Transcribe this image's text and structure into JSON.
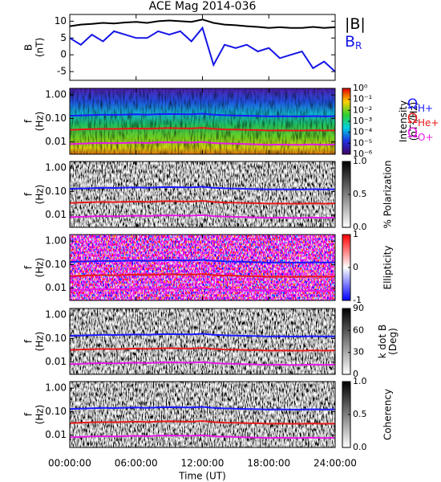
{
  "chart_data": [
    {
      "type": "line",
      "title": "ACE Mag 2014-036",
      "ylabel": [
        "B",
        "(nT)"
      ],
      "x": [
        0,
        1,
        2,
        3,
        4,
        5,
        6,
        7,
        8,
        9,
        10,
        11,
        12,
        13,
        14,
        15,
        16,
        17,
        18,
        19,
        20,
        21,
        22,
        23,
        24
      ],
      "xlim": [
        0,
        24
      ],
      "ylim": [
        -7.6,
        12
      ],
      "yticks": [
        -5,
        0,
        5,
        10
      ],
      "series": [
        {
          "name": "|B|",
          "color": "#000000",
          "values": [
            8.5,
            9,
            9.2,
            9.5,
            9.3,
            9.6,
            9.8,
            9.5,
            10,
            10.2,
            10,
            9.8,
            10.5,
            9.5,
            9,
            8.8,
            8.5,
            8.3,
            8,
            8.2,
            8,
            8,
            8.3,
            8,
            8.2
          ]
        },
        {
          "name": "B",
          "subscript": "R",
          "color": "#1515e6",
          "values": [
            5,
            3,
            6,
            4,
            7,
            6,
            5,
            5,
            7,
            6,
            7,
            4,
            8,
            -3,
            3,
            2,
            3,
            1,
            2,
            -1,
            0,
            1,
            -4,
            -2,
            -5
          ]
        }
      ]
    },
    {
      "type": "spectrogram",
      "ylabel": [
        "f",
        "(Hz)"
      ],
      "palette": "rainbow",
      "x": [
        0,
        1,
        2,
        3,
        4,
        5,
        6,
        7,
        8,
        9,
        10,
        11,
        12,
        13,
        14,
        15,
        16,
        17,
        18,
        19,
        20,
        21,
        22,
        23,
        24
      ],
      "xlim": [
        0,
        24
      ],
      "ylim": [
        0.003,
        1.9
      ],
      "log": true,
      "yticks": [
        {
          "value": 1,
          "label": "1.00"
        },
        {
          "value": 0.1,
          "label": "0.10"
        },
        {
          "value": 0.01,
          "label": "0.01"
        }
      ],
      "series": [
        {
          "name": "Ω",
          "subscript": "H+",
          "color": "#1a1aff",
          "values": [
            0.13,
            0.135,
            0.14,
            0.145,
            0.142,
            0.146,
            0.15,
            0.145,
            0.152,
            0.155,
            0.152,
            0.15,
            0.16,
            0.145,
            0.137,
            0.134,
            0.13,
            0.127,
            0.122,
            0.125,
            0.122,
            0.122,
            0.126,
            0.122,
            0.125
          ]
        },
        {
          "name": "Ω",
          "subscript": "He+",
          "color": "#e61a1a",
          "values": [
            0.0325,
            0.034,
            0.035,
            0.036,
            0.0355,
            0.0365,
            0.0375,
            0.036,
            0.038,
            0.039,
            0.038,
            0.0375,
            0.04,
            0.036,
            0.034,
            0.0335,
            0.0325,
            0.032,
            0.0305,
            0.031,
            0.0305,
            0.0305,
            0.0315,
            0.0305,
            0.031
          ]
        },
        {
          "name": "Ω",
          "subscript": "O+",
          "color": "#e619e6",
          "values": [
            0.0081,
            0.0084,
            0.0088,
            0.009,
            0.0089,
            0.0091,
            0.0094,
            0.009,
            0.0095,
            0.0097,
            0.0095,
            0.0094,
            0.01,
            0.009,
            0.0086,
            0.0084,
            0.0081,
            0.0079,
            0.0076,
            0.0078,
            0.0076,
            0.0076,
            0.0079,
            0.0076,
            0.0078
          ]
        }
      ],
      "colorbar": {
        "label": [
          "Intensity",
          "(nT²/Hz)"
        ],
        "lim": [
          1e-06,
          1
        ],
        "log": true,
        "ticks": [
          {
            "value": 1,
            "label": "10⁰"
          },
          {
            "value": 0.1,
            "label": "10⁻¹"
          },
          {
            "value": 0.01,
            "label": "10⁻²"
          },
          {
            "value": 0.001,
            "label": "10⁻³"
          },
          {
            "value": 0.0001,
            "label": "10⁻⁴"
          },
          {
            "value": 1e-05,
            "label": "10⁻⁵"
          },
          {
            "value": 1e-06,
            "label": "10⁻⁶"
          }
        ]
      }
    },
    {
      "type": "spectrogram",
      "ylabel": [
        "f",
        "(Hz)"
      ],
      "palette": "gray",
      "xlim": [
        0,
        24
      ],
      "ylim": [
        0.003,
        1.9
      ],
      "log": true,
      "yticks": [
        {
          "value": 1,
          "label": "1.00"
        },
        {
          "value": 0.1,
          "label": "0.10"
        },
        {
          "value": 0.01,
          "label": "0.01"
        }
      ],
      "colorbar": {
        "label": [
          "% Polarization"
        ],
        "lim": [
          0,
          1
        ],
        "ticks": [
          {
            "value": 1,
            "label": "1.0"
          },
          0.5,
          {
            "value": 0,
            "label": "0.0"
          }
        ]
      }
    },
    {
      "type": "spectrogram",
      "ylabel": [
        "f",
        "(Hz)"
      ],
      "palette": "redblue",
      "xlim": [
        0,
        24
      ],
      "ylim": [
        0.003,
        1.9
      ],
      "log": true,
      "yticks": [
        {
          "value": 1,
          "label": "1.00"
        },
        {
          "value": 0.1,
          "label": "0.10"
        },
        {
          "value": 0.01,
          "label": "0.01"
        }
      ],
      "colorbar": {
        "label": [
          "Ellipticity"
        ],
        "lim": [
          -1,
          1
        ],
        "ticks": [
          1,
          0,
          -1
        ]
      }
    },
    {
      "type": "spectrogram",
      "ylabel": [
        "f",
        "(Hz)"
      ],
      "palette": "gray",
      "xlim": [
        0,
        24
      ],
      "ylim": [
        0.003,
        1.9
      ],
      "log": true,
      "yticks": [
        {
          "value": 1,
          "label": "1.00"
        },
        {
          "value": 0.1,
          "label": "0.10"
        },
        {
          "value": 0.01,
          "label": "0.01"
        }
      ],
      "colorbar": {
        "label": [
          "k dot B",
          "(Deg)"
        ],
        "lim": [
          0,
          90
        ],
        "ticks": [
          90,
          60,
          30,
          0
        ]
      }
    },
    {
      "type": "spectrogram",
      "ylabel": [
        "f",
        "(Hz)"
      ],
      "palette": "gray",
      "xlim": [
        0,
        24
      ],
      "ylim": [
        0.003,
        1.9
      ],
      "log": true,
      "yticks": [
        {
          "value": 1,
          "label": "1.00"
        },
        {
          "value": 0.1,
          "label": "0.10"
        },
        {
          "value": 0.01,
          "label": "0.01"
        }
      ],
      "colorbar": {
        "label": [
          "Coherency"
        ],
        "lim": [
          0,
          1
        ],
        "ticks": [
          {
            "value": 1,
            "label": "1.0"
          },
          0.5,
          {
            "value": 0,
            "label": "0.0"
          }
        ]
      },
      "xlabel": "Time (UT)",
      "xticks": [
        {
          "value": 0,
          "label": "00:00:00"
        },
        {
          "value": 6,
          "label": "06:00:00"
        },
        {
          "value": 12,
          "label": "12:00:00"
        },
        {
          "value": 18,
          "label": "18:00:00"
        },
        {
          "value": 24,
          "label": "24:00:00"
        }
      ]
    }
  ]
}
